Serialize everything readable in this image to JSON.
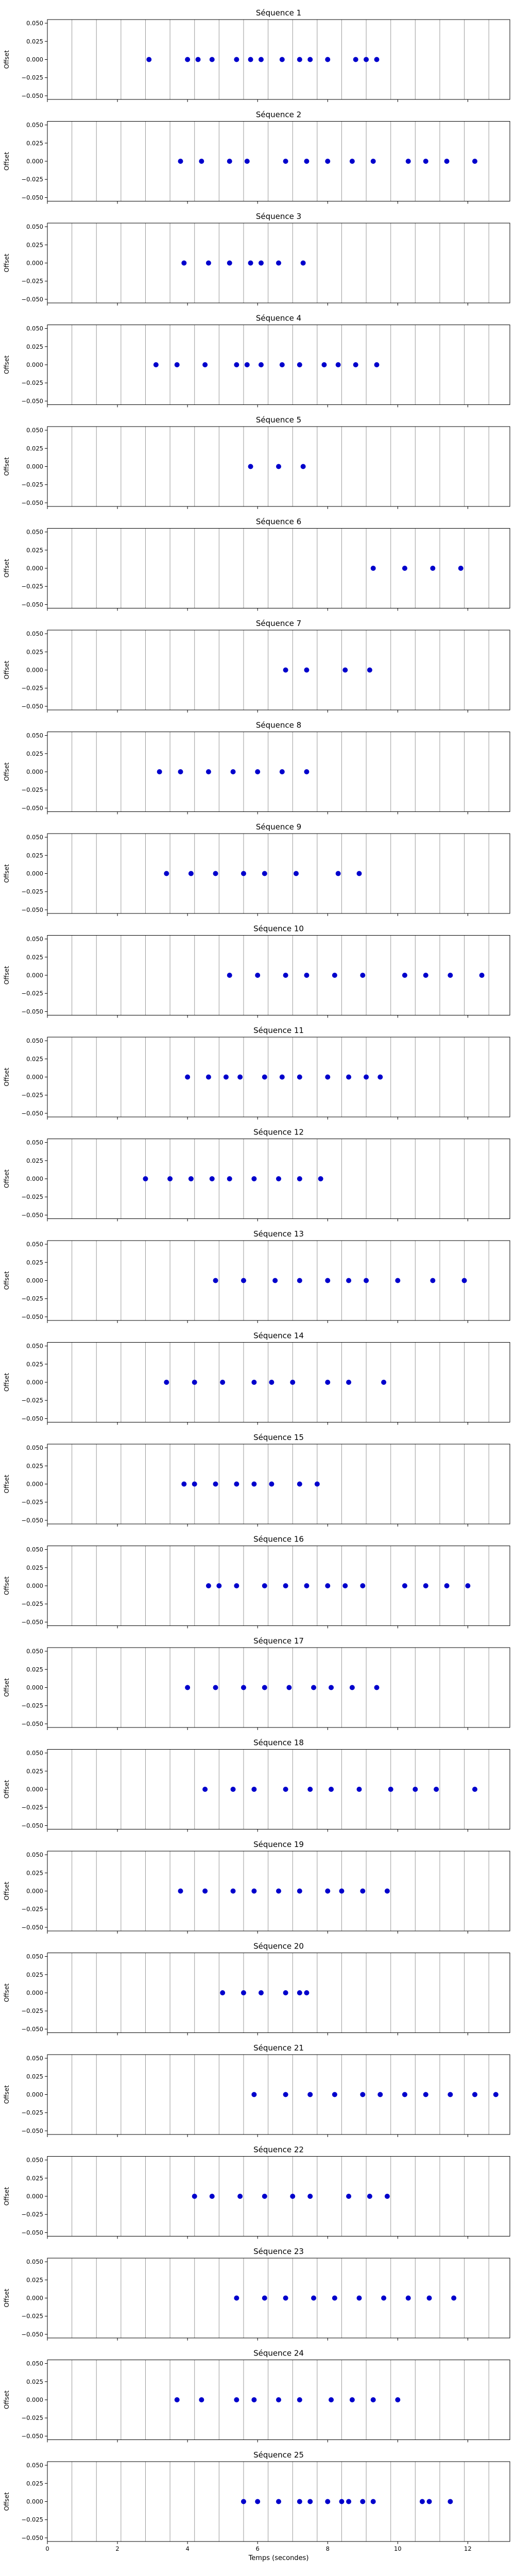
{
  "figure": {
    "xlabel": "Temps (secondes)"
  },
  "chart_data": {
    "type": "scatter",
    "xlim": [
      0,
      13.2
    ],
    "ylim": [
      -0.055,
      0.055
    ],
    "x_ticks": [
      0,
      2,
      4,
      6,
      8,
      10,
      12
    ],
    "y_ticks": [
      "0.050",
      "0.025",
      "0.000",
      "−0.025",
      "−0.050"
    ],
    "y_tick_values": [
      0.05,
      0.025,
      0.0,
      -0.025,
      -0.05
    ],
    "ylabel": "Offset",
    "xlabel": "Temps (secondes)",
    "grid": "vertical lines at 0.7 s intervals",
    "vline_x": [
      0.7,
      1.4,
      2.1,
      2.8,
      3.5,
      4.2,
      4.9,
      5.6,
      6.3,
      7.0,
      7.7,
      8.4,
      9.1,
      9.8,
      10.5,
      11.2,
      11.9,
      12.6
    ],
    "marker_color": "#0000cc",
    "subplots": [
      {
        "title": "Séquence 1",
        "y": 0,
        "x": [
          2.9,
          4.0,
          4.3,
          4.7,
          5.4,
          5.8,
          6.1,
          6.7,
          7.2,
          7.5,
          8.0,
          8.8,
          9.1,
          9.4
        ]
      },
      {
        "title": "Séquence 2",
        "y": 0,
        "x": [
          3.8,
          4.4,
          5.2,
          5.7,
          6.8,
          7.4,
          8.0,
          8.7,
          9.3,
          10.3,
          10.8,
          11.4,
          12.2
        ]
      },
      {
        "title": "Séquence 3",
        "y": 0,
        "x": [
          3.9,
          4.6,
          5.2,
          5.8,
          6.1,
          6.6,
          7.3
        ]
      },
      {
        "title": "Séquence 4",
        "y": 0,
        "x": [
          3.1,
          3.7,
          4.5,
          5.4,
          5.7,
          6.1,
          6.7,
          7.2,
          7.9,
          8.3,
          8.8,
          9.4
        ]
      },
      {
        "title": "Séquence 5",
        "y": 0,
        "x": [
          5.8,
          6.6,
          7.3
        ]
      },
      {
        "title": "Séquence 6",
        "y": 0,
        "x": [
          9.3,
          10.2,
          11.0,
          11.8
        ]
      },
      {
        "title": "Séquence 7",
        "y": 0,
        "x": [
          6.8,
          7.4,
          8.5,
          9.2
        ]
      },
      {
        "title": "Séquence 8",
        "y": 0,
        "x": [
          3.2,
          3.8,
          4.6,
          5.3,
          6.0,
          6.7,
          7.4
        ]
      },
      {
        "title": "Séquence 9",
        "y": 0,
        "x": [
          3.4,
          4.1,
          4.8,
          5.6,
          6.2,
          7.1,
          8.3,
          8.9
        ]
      },
      {
        "title": "Séquence 10",
        "y": 0,
        "x": [
          5.2,
          6.0,
          6.8,
          7.4,
          8.2,
          9.0,
          10.2,
          10.8,
          11.5,
          12.4
        ]
      },
      {
        "title": "Séquence 11",
        "y": 0,
        "x": [
          4.0,
          4.6,
          5.1,
          5.5,
          6.2,
          6.7,
          7.2,
          8.0,
          8.6,
          9.1,
          9.5
        ]
      },
      {
        "title": "Séquence 12",
        "y": 0,
        "x": [
          2.8,
          3.5,
          4.1,
          4.7,
          5.2,
          5.9,
          6.6,
          7.2,
          7.8
        ]
      },
      {
        "title": "Séquence 13",
        "y": 0,
        "x": [
          4.8,
          5.6,
          6.5,
          7.2,
          8.0,
          8.6,
          9.1,
          10.0,
          11.0,
          11.9
        ]
      },
      {
        "title": "Séquence 14",
        "y": 0,
        "x": [
          3.4,
          4.2,
          5.0,
          5.9,
          6.4,
          7.0,
          8.0,
          8.6,
          9.6
        ]
      },
      {
        "title": "Séquence 15",
        "y": 0,
        "x": [
          3.9,
          4.2,
          4.8,
          5.4,
          5.9,
          6.4,
          7.2,
          7.7
        ]
      },
      {
        "title": "Séquence 16",
        "y": 0,
        "x": [
          4.6,
          4.9,
          5.4,
          6.2,
          6.8,
          7.4,
          8.0,
          8.5,
          9.0,
          10.2,
          10.8,
          11.4,
          12.0
        ]
      },
      {
        "title": "Séquence 17",
        "y": 0,
        "x": [
          4.0,
          4.8,
          5.6,
          6.2,
          6.9,
          7.6,
          8.1,
          8.7,
          9.4
        ]
      },
      {
        "title": "Séquence 18",
        "y": 0,
        "x": [
          4.5,
          5.3,
          5.9,
          6.8,
          7.5,
          8.1,
          8.9,
          9.8,
          10.5,
          11.1,
          12.2
        ]
      },
      {
        "title": "Séquence 19",
        "y": 0,
        "x": [
          3.8,
          4.5,
          5.3,
          5.9,
          6.6,
          7.2,
          8.0,
          8.4,
          9.0,
          9.7
        ]
      },
      {
        "title": "Séquence 20",
        "y": 0,
        "x": [
          5.0,
          5.6,
          6.1,
          6.8,
          7.2,
          7.4
        ]
      },
      {
        "title": "Séquence 21",
        "y": 0,
        "x": [
          5.9,
          6.8,
          7.5,
          8.2,
          9.0,
          9.5,
          10.2,
          10.8,
          11.5,
          12.2,
          12.8
        ]
      },
      {
        "title": "Séquence 22",
        "y": 0,
        "x": [
          4.2,
          4.7,
          5.5,
          6.2,
          7.0,
          7.5,
          8.6,
          9.2,
          9.7
        ]
      },
      {
        "title": "Séquence 23",
        "y": 0,
        "x": [
          5.4,
          6.2,
          6.8,
          7.6,
          8.2,
          8.9,
          9.6,
          10.3,
          10.9,
          11.6
        ]
      },
      {
        "title": "Séquence 24",
        "y": 0,
        "x": [
          3.7,
          4.4,
          5.4,
          5.9,
          6.6,
          7.2,
          8.1,
          8.7,
          9.3,
          10.0
        ]
      },
      {
        "title": "Séquence 25",
        "y": 0,
        "x": [
          5.6,
          6.0,
          6.6,
          7.2,
          7.5,
          8.0,
          8.4,
          8.6,
          9.0,
          9.3,
          10.7,
          10.9,
          11.5
        ]
      }
    ]
  }
}
